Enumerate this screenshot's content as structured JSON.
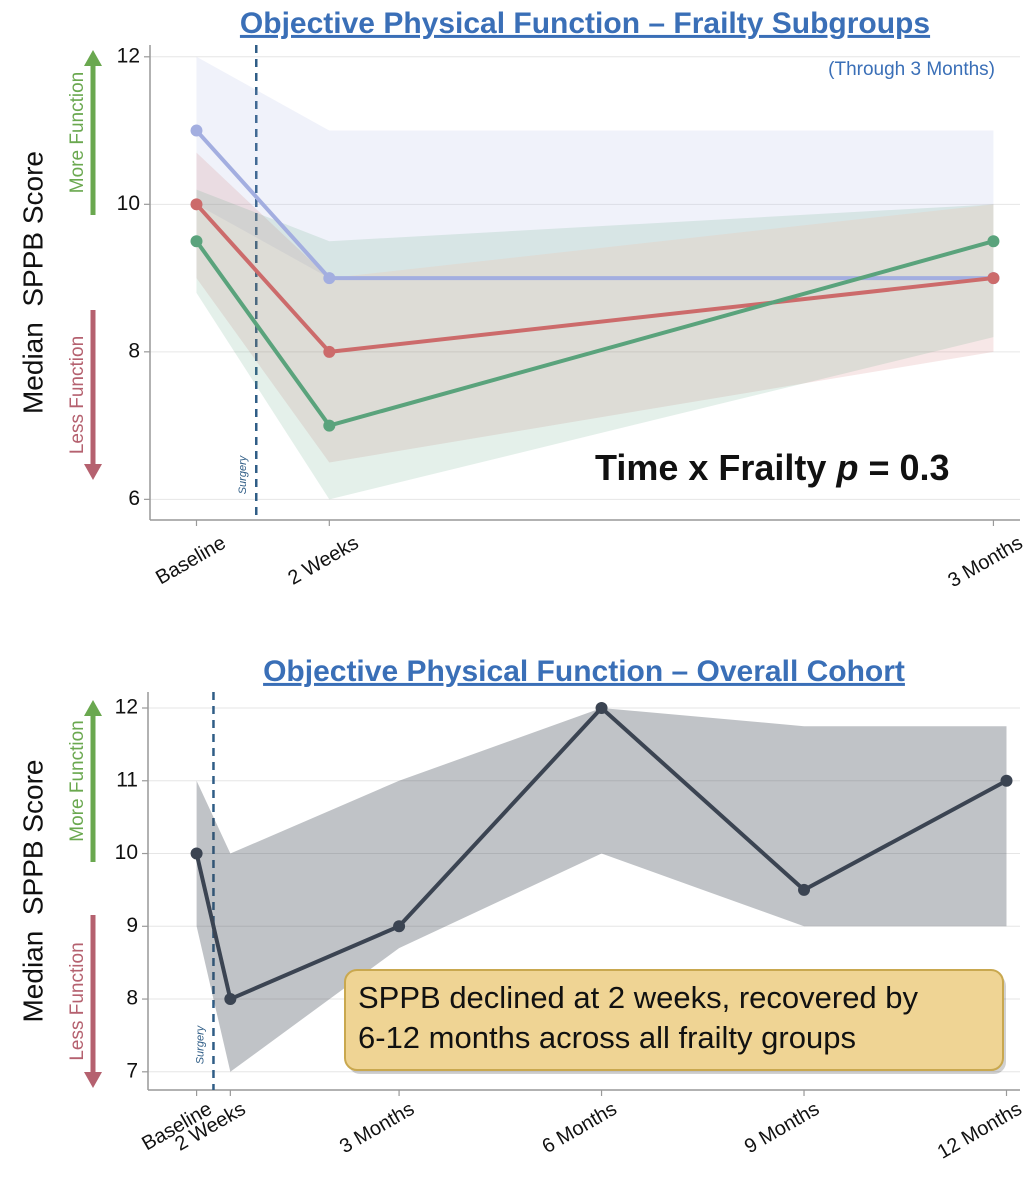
{
  "chart_data": [
    {
      "type": "line",
      "title": "Objective Physical Function – Frailty Subgroups",
      "subtitle": "(Through 3 Months)",
      "y_label": "Median  SPPB Score",
      "up_label": "More Function",
      "down_label": "Less Function",
      "annotation": [
        "Time x Frailty ",
        "p",
        " = 0.3"
      ],
      "x": [
        0,
        2,
        12
      ],
      "xlim": [
        -0.7,
        12.4
      ],
      "xticks": [
        {
          "value": 0,
          "label": "Baseline"
        },
        {
          "value": 2,
          "label": "2 Weeks"
        },
        {
          "value": 12,
          "label": "3 Months"
        }
      ],
      "ylim": [
        5.72,
        12.16
      ],
      "yticks": [
        6,
        8,
        10,
        12
      ],
      "grid": true,
      "vline": {
        "x": 0.9,
        "label": "Surgery"
      },
      "series": [
        {
          "color": "#a3aee0",
          "values": [
            11,
            9,
            9
          ],
          "lower": [
            10,
            9,
            10
          ],
          "upper": [
            12,
            11,
            11
          ]
        },
        {
          "color": "#cc6b6b",
          "values": [
            10,
            8,
            9
          ],
          "lower": [
            9,
            6.5,
            8
          ],
          "upper": [
            10.7,
            9,
            10
          ]
        },
        {
          "color": "#5aa37c",
          "values": [
            9.5,
            7,
            9.5
          ],
          "lower": [
            8.8,
            6,
            8.2
          ],
          "upper": [
            10.2,
            9.5,
            10
          ]
        }
      ]
    },
    {
      "type": "line",
      "title": "Objective Physical Function – Overall Cohort",
      "y_label": "Median  SPPB Score",
      "up_label": "More Function",
      "down_label": "Less Function",
      "note": [
        "SPPB declined at 2 weeks, recovered by",
        "6-12 months across all frailty groups"
      ],
      "x": [
        0,
        0.5,
        3,
        6,
        9,
        12
      ],
      "xlim": [
        -0.72,
        12.2
      ],
      "xticks": [
        {
          "value": 0,
          "label": "Baseline"
        },
        {
          "value": 0.5,
          "label": "2 Weeks"
        },
        {
          "value": 3,
          "label": "3 Months"
        },
        {
          "value": 6,
          "label": "6 Months"
        },
        {
          "value": 9,
          "label": "9 Months"
        },
        {
          "value": 12,
          "label": "12 Months"
        }
      ],
      "ylim": [
        6.75,
        12.22
      ],
      "yticks": [
        7,
        8,
        9,
        10,
        11,
        12
      ],
      "grid": true,
      "vline": {
        "x": 0.25,
        "label": "Surgery"
      },
      "color": "#3b4452",
      "values": [
        10,
        8,
        9,
        12,
        9.5,
        11
      ],
      "lower": [
        9,
        7,
        8.7,
        10,
        9,
        9
      ],
      "upper": [
        11,
        10,
        11,
        12,
        11.75,
        11.75
      ]
    }
  ]
}
